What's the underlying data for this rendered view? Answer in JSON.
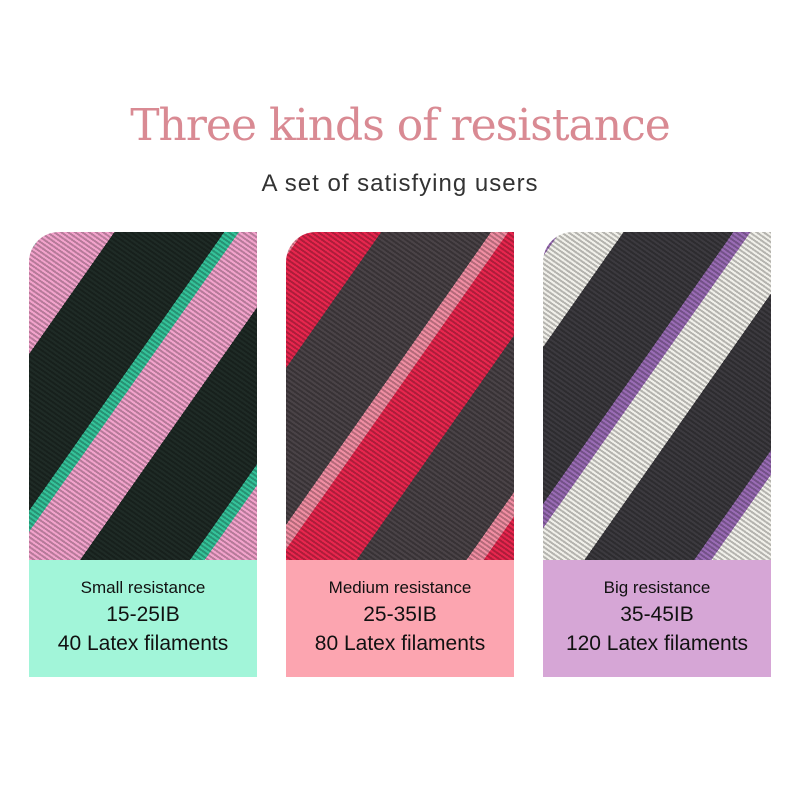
{
  "header": {
    "title": "Three kinds of resistance",
    "subtitle": "A set of satisfying users"
  },
  "cards": [
    {
      "name": "Small resistance",
      "range": "15-25IB",
      "filaments": "40 Latex filaments",
      "color": "#a2f5d9"
    },
    {
      "name": "Medium resistance",
      "range": "25-35IB",
      "filaments": "80 Latex filaments",
      "color": "#fca5b0"
    },
    {
      "name": "Big resistance",
      "range": "35-45IB",
      "filaments": "120 Latex filaments",
      "color": "#d6a6d6"
    }
  ]
}
